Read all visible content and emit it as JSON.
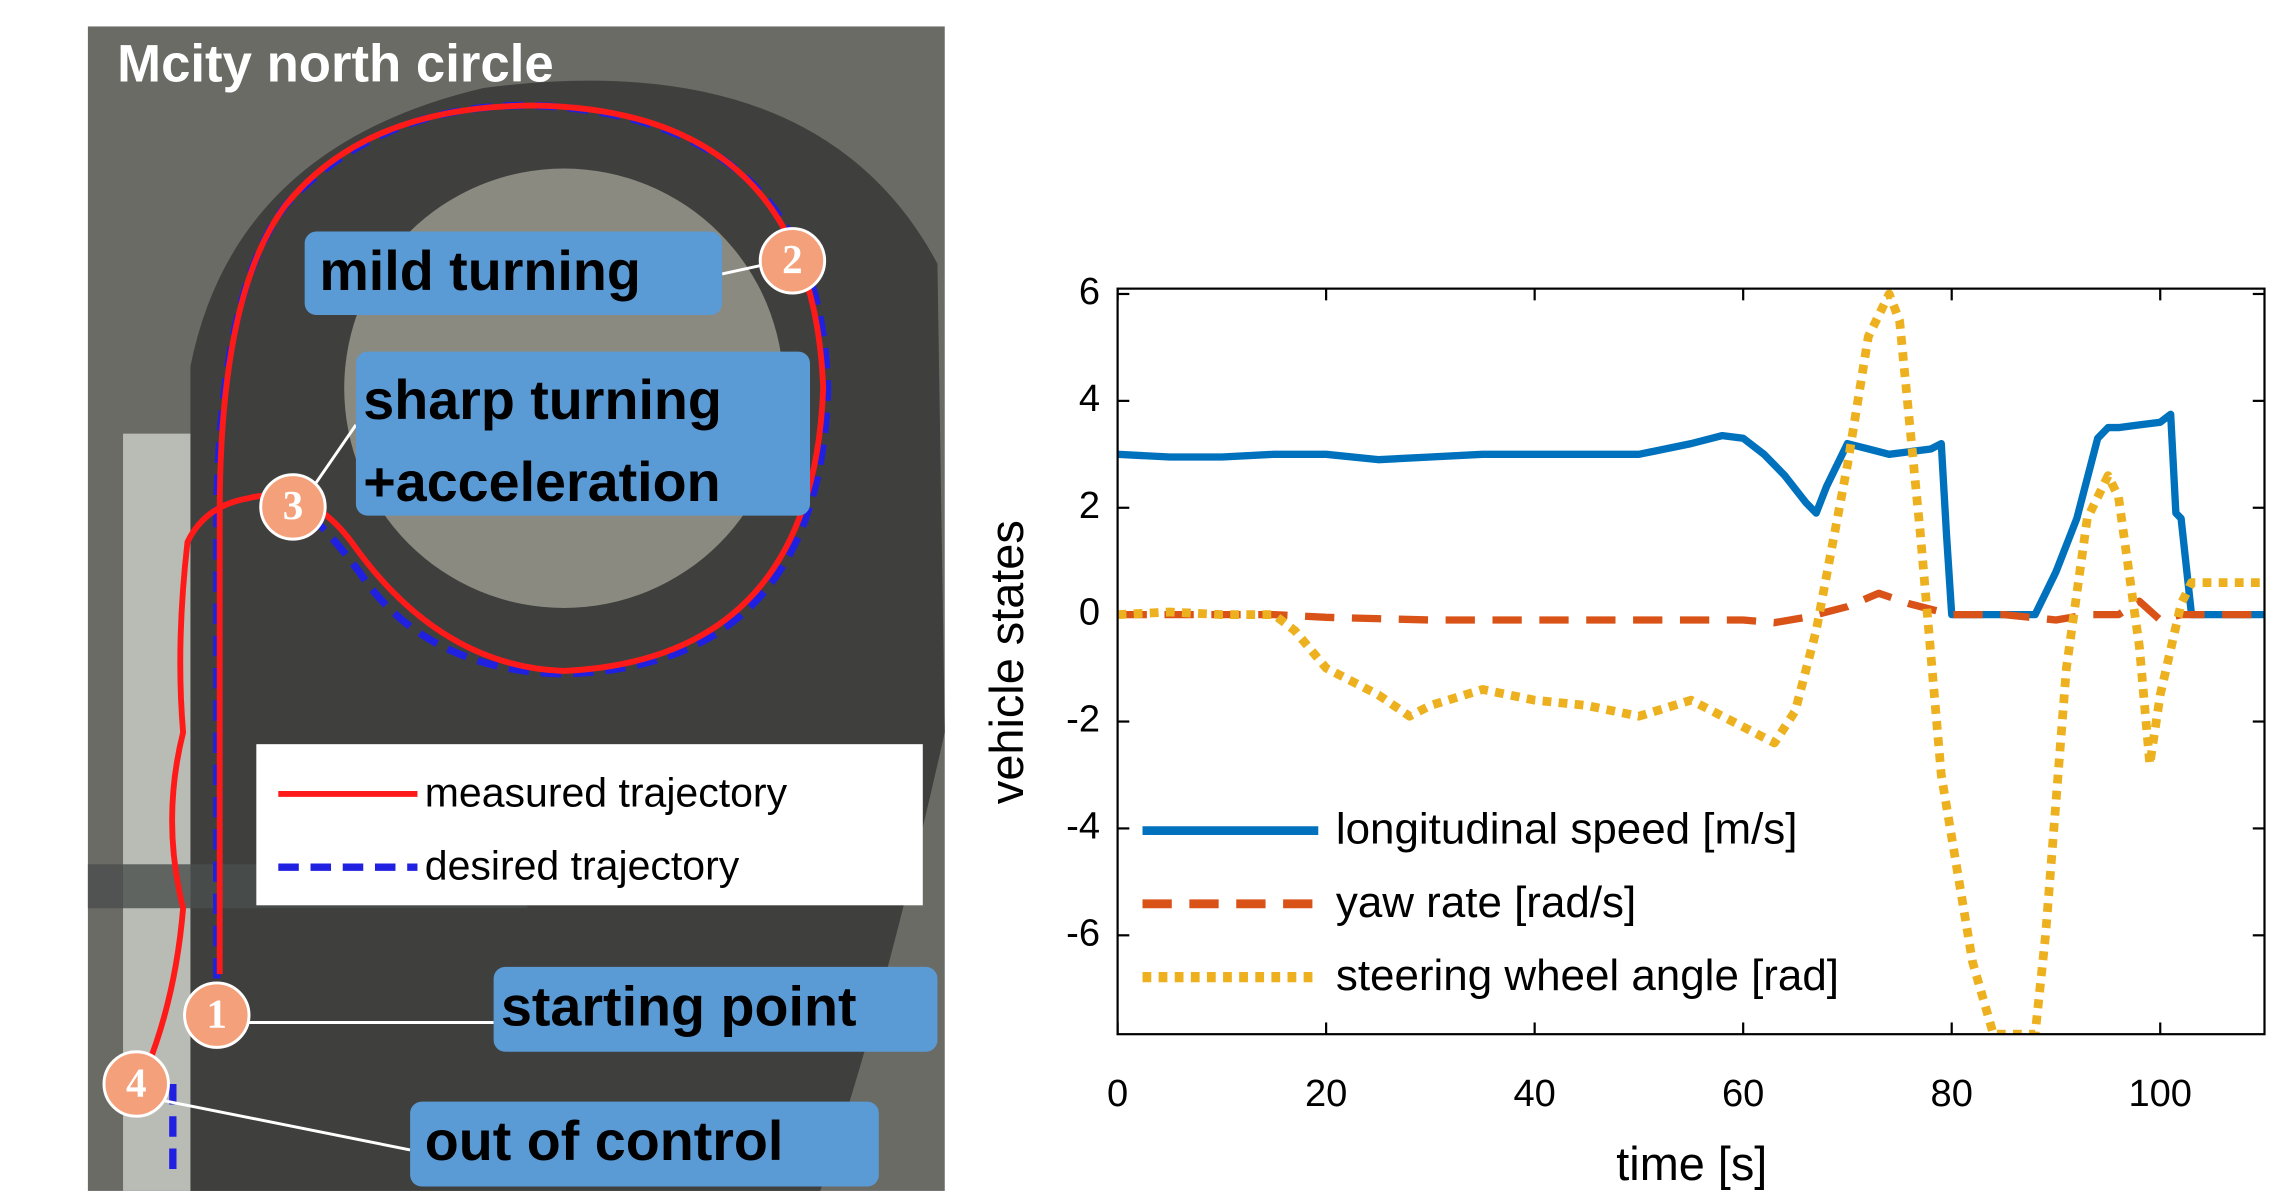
{
  "map": {
    "title": "Mcity north circle",
    "annotations": [
      [
        "mild turning"
      ],
      [
        "sharp turning",
        "+acceleration"
      ],
      [
        "starting point"
      ],
      [
        "out of control"
      ]
    ],
    "markers": [
      "1",
      "2",
      "3",
      "4"
    ],
    "legend": [
      "measured trajectory",
      "desired trajectory"
    ]
  },
  "chart_data": {
    "type": "line",
    "xlabel": "time [s]",
    "ylabel": "vehicle states",
    "xlim": [
      0,
      110
    ],
    "ylim": [
      -7.85,
      6.1
    ],
    "xticks": [
      0,
      20,
      40,
      60,
      80,
      100
    ],
    "yticks": [
      -6,
      -4,
      -2,
      0,
      2,
      4,
      6
    ],
    "grid": false,
    "legend_position": "lower left",
    "series": [
      {
        "name": "longitudinal speed [m/s]",
        "color": "#0072bd",
        "style": "solid",
        "x": [
          0,
          5,
          10,
          15,
          20,
          25,
          30,
          35,
          40,
          45,
          50,
          55,
          58,
          60,
          62,
          64,
          66,
          67,
          68,
          70,
          72,
          74,
          76,
          78,
          79,
          79.5,
          80,
          85,
          88,
          90,
          92,
          94,
          95,
          96,
          98,
          100,
          101,
          101.5,
          102,
          103,
          105,
          110
        ],
        "values": [
          3,
          2.95,
          2.95,
          3,
          3,
          2.9,
          2.95,
          3,
          3,
          3,
          3,
          3.2,
          3.35,
          3.3,
          3,
          2.6,
          2.1,
          1.9,
          2.4,
          3.2,
          3.1,
          3,
          3.05,
          3.1,
          3.2,
          1.5,
          0,
          0,
          0,
          0.8,
          1.8,
          3.3,
          3.5,
          3.5,
          3.55,
          3.6,
          3.75,
          1.9,
          1.8,
          0,
          0,
          0
        ]
      },
      {
        "name": "yaw rate [rad/s]",
        "color": "#d95319",
        "style": "dashed",
        "x": [
          0,
          10,
          15,
          20,
          30,
          40,
          50,
          60,
          63,
          66,
          70,
          73,
          76,
          80,
          85,
          90,
          93,
          96,
          98,
          100,
          102,
          105,
          110
        ],
        "values": [
          0,
          0,
          0,
          -0.05,
          -0.1,
          -0.1,
          -0.1,
          -0.1,
          -0.15,
          -0.05,
          0.15,
          0.4,
          0.2,
          0,
          0,
          -0.1,
          0,
          0,
          0.25,
          -0.1,
          0,
          0,
          0
        ]
      },
      {
        "name": "steering wheel angle [rad]",
        "color": "#edb120",
        "style": "dotted",
        "x": [
          0,
          5,
          10,
          15,
          17,
          20,
          25,
          28,
          30,
          35,
          40,
          45,
          50,
          55,
          60,
          63,
          65,
          67,
          70,
          72,
          74,
          75,
          77,
          79,
          82,
          84,
          85,
          88,
          89,
          91,
          93,
          95,
          96,
          98,
          99,
          100,
          102,
          103,
          110
        ],
        "values": [
          0,
          0.05,
          0,
          0,
          -0.3,
          -1.0,
          -1.5,
          -1.9,
          -1.7,
          -1.4,
          -1.6,
          -1.7,
          -1.9,
          -1.6,
          -2.1,
          -2.4,
          -1.8,
          -0.3,
          2.8,
          5.2,
          6.0,
          5.5,
          1.5,
          -3,
          -6.5,
          -7.85,
          -7.85,
          -7.85,
          -6,
          -1,
          1.8,
          2.6,
          2.2,
          -0.6,
          -2.8,
          -1.5,
          0.2,
          0.6,
          0.6
        ]
      }
    ]
  }
}
